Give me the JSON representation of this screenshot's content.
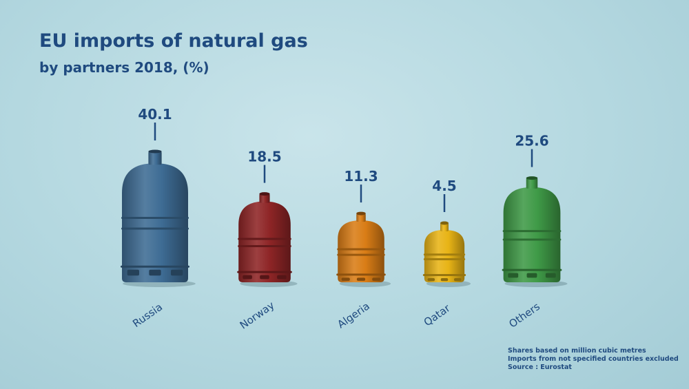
{
  "chart_data": {
    "type": "bar",
    "title": "EU imports of natural gas",
    "subtitle": "by partners 2018, (%)",
    "categories": [
      "Russia",
      "Norway",
      "Algeria",
      "Qatar",
      "Others"
    ],
    "values": [
      40.1,
      18.5,
      11.3,
      4.5,
      25.6
    ],
    "value_labels": [
      "40.1",
      "18.5",
      "11.3",
      "4.5",
      "25.6"
    ],
    "colors": [
      "#3e6c94",
      "#8e2526",
      "#d97d16",
      "#e8b416",
      "#3f9a47"
    ],
    "mark_style": "gas-cylinder",
    "xlabel": "",
    "ylabel": "",
    "grid": false,
    "legend": "none"
  },
  "notes": [
    "Shares based on million cubic metres",
    "Imports from not specified countries excluded",
    "Source : Eurostat"
  ],
  "colors": {
    "text": "#1f4a7f",
    "background": "#b4d8e0"
  }
}
